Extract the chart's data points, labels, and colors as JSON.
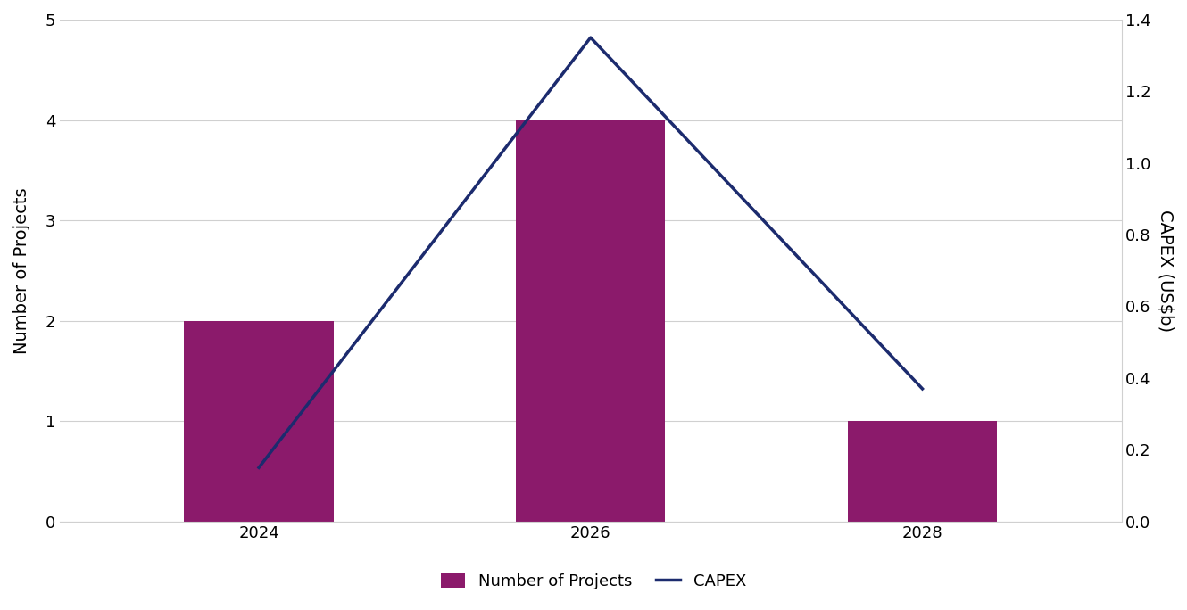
{
  "years": [
    2024,
    2026,
    2028
  ],
  "num_projects": [
    2,
    4,
    1
  ],
  "capex": [
    0.15,
    1.35,
    0.37
  ],
  "bar_color": "#8B1A6B",
  "line_color": "#1C2B6E",
  "left_ylim": [
    0,
    5
  ],
  "right_ylim": [
    0,
    1.4
  ],
  "left_yticks": [
    0,
    1,
    2,
    3,
    4,
    5
  ],
  "right_yticks": [
    0,
    0.2,
    0.4,
    0.6,
    0.8,
    1.0,
    1.2,
    1.4
  ],
  "left_ylabel": "Number of Projects",
  "right_ylabel": "CAPEX (US$b)",
  "legend_labels": [
    "Number of Projects",
    "CAPEX"
  ],
  "bar_width": 0.9,
  "background_color": "#ffffff",
  "grid_color": "#d0d0d0",
  "axis_label_fontsize": 14,
  "tick_fontsize": 13,
  "legend_fontsize": 13,
  "line_width": 2.5,
  "xlim": [
    2022.8,
    2029.2
  ]
}
